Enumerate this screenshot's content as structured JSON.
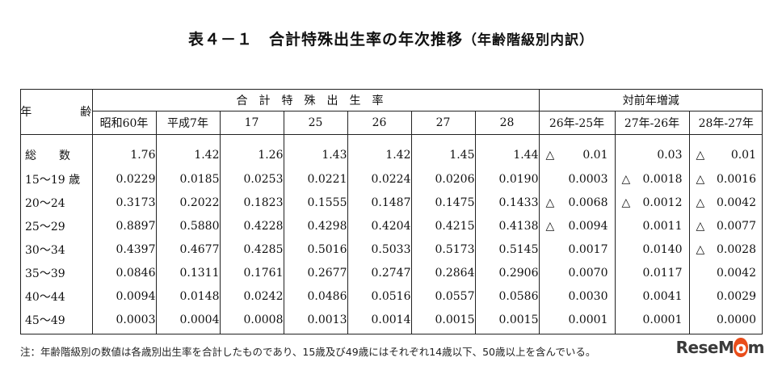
{
  "title": {
    "main": "表４－１　合計特殊出生率の年次推移",
    "sub": "（年齢階級別内訳）"
  },
  "table": {
    "age_header": "年　齢",
    "group_tfr": "合計特殊出生率",
    "group_change": "対前年増減",
    "columns": [
      "昭和60年",
      "平成7年",
      "17",
      "25",
      "26",
      "27",
      "28",
      "26年-25年",
      "27年-26年",
      "28年-27年"
    ],
    "rows": [
      {
        "age": "総　　数",
        "values": [
          "1.76",
          "1.42",
          "1.26",
          "1.43",
          "1.42",
          "1.45",
          "1.44"
        ],
        "changes": [
          {
            "neg": true,
            "v": "0.01"
          },
          {
            "neg": false,
            "v": "0.03"
          },
          {
            "neg": true,
            "v": "0.01"
          }
        ]
      },
      {
        "age": "15～19 歳",
        "values": [
          "0.0229",
          "0.0185",
          "0.0253",
          "0.0221",
          "0.0224",
          "0.0206",
          "0.0190"
        ],
        "changes": [
          {
            "neg": false,
            "v": "0.0003"
          },
          {
            "neg": true,
            "v": "0.0018"
          },
          {
            "neg": true,
            "v": "0.0016"
          }
        ]
      },
      {
        "age": "20～24",
        "values": [
          "0.3173",
          "0.2022",
          "0.1823",
          "0.1555",
          "0.1487",
          "0.1475",
          "0.1433"
        ],
        "changes": [
          {
            "neg": true,
            "v": "0.0068"
          },
          {
            "neg": true,
            "v": "0.0012"
          },
          {
            "neg": true,
            "v": "0.0042"
          }
        ]
      },
      {
        "age": "25～29",
        "values": [
          "0.8897",
          "0.5880",
          "0.4228",
          "0.4298",
          "0.4204",
          "0.4215",
          "0.4138"
        ],
        "changes": [
          {
            "neg": true,
            "v": "0.0094"
          },
          {
            "neg": false,
            "v": "0.0011"
          },
          {
            "neg": true,
            "v": "0.0077"
          }
        ]
      },
      {
        "age": "30～34",
        "values": [
          "0.4397",
          "0.4677",
          "0.4285",
          "0.5016",
          "0.5033",
          "0.5173",
          "0.5145"
        ],
        "changes": [
          {
            "neg": false,
            "v": "0.0017"
          },
          {
            "neg": false,
            "v": "0.0140"
          },
          {
            "neg": true,
            "v": "0.0028"
          }
        ]
      },
      {
        "age": "35～39",
        "values": [
          "0.0846",
          "0.1311",
          "0.1761",
          "0.2677",
          "0.2747",
          "0.2864",
          "0.2906"
        ],
        "changes": [
          {
            "neg": false,
            "v": "0.0070"
          },
          {
            "neg": false,
            "v": "0.0117"
          },
          {
            "neg": false,
            "v": "0.0042"
          }
        ]
      },
      {
        "age": "40～44",
        "values": [
          "0.0094",
          "0.0148",
          "0.0242",
          "0.0486",
          "0.0516",
          "0.0557",
          "0.0586"
        ],
        "changes": [
          {
            "neg": false,
            "v": "0.0030"
          },
          {
            "neg": false,
            "v": "0.0041"
          },
          {
            "neg": false,
            "v": "0.0029"
          }
        ]
      },
      {
        "age": "45～49",
        "values": [
          "0.0003",
          "0.0004",
          "0.0008",
          "0.0013",
          "0.0014",
          "0.0015",
          "0.0015"
        ],
        "changes": [
          {
            "neg": false,
            "v": "0.0001"
          },
          {
            "neg": false,
            "v": "0.0001"
          },
          {
            "neg": false,
            "v": "0.0000"
          }
        ]
      }
    ],
    "neg_symbol": "△"
  },
  "note": "注：年齢階級別の数値は各歳別出生率を合計したものであり、15歳及び49歳にはそれぞれ14歳以下、50歳以上を含んでいる。",
  "logo": {
    "text_a": "ReseM",
    "text_o": "o",
    "text_b": "m"
  }
}
